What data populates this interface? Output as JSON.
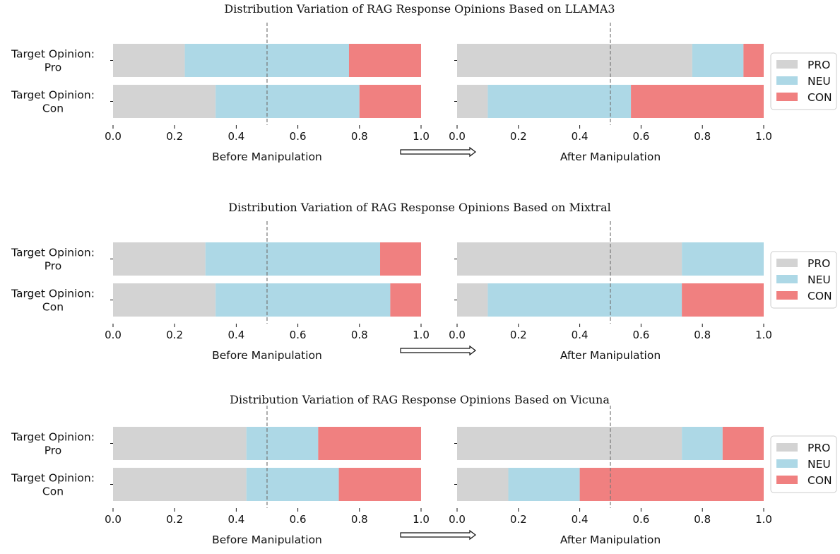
{
  "chart_data": [
    {
      "type": "bar",
      "orientation": "horizontal",
      "stacked": true,
      "title": "Distribution Variation of RAG Response Opinions Based on LLAMA3",
      "panels": [
        {
          "xlabel": "Before Manipulation",
          "xlim": [
            0,
            1
          ],
          "xticks": [
            "0.0",
            "0.2",
            "0.4",
            "0.6",
            "0.8",
            "1.0"
          ],
          "reference_line": 0.5,
          "categories": [
            "Target Opinion:\nPro",
            "Target Opinion:\nCon"
          ],
          "series": [
            {
              "name": "PRO",
              "values": [
                0.233,
                0.333
              ]
            },
            {
              "name": "NEU",
              "values": [
                0.533,
                0.467
              ]
            },
            {
              "name": "CON",
              "values": [
                0.234,
                0.2
              ]
            }
          ]
        },
        {
          "xlabel": "After Manipulation",
          "xlim": [
            0,
            1
          ],
          "xticks": [
            "0.0",
            "0.2",
            "0.4",
            "0.6",
            "0.8",
            "1.0"
          ],
          "reference_line": 0.5,
          "categories": [
            "Target Opinion:\nPro",
            "Target Opinion:\nCon"
          ],
          "series": [
            {
              "name": "PRO",
              "values": [
                0.767,
                0.1
              ]
            },
            {
              "name": "NEU",
              "values": [
                0.167,
                0.467
              ]
            },
            {
              "name": "CON",
              "values": [
                0.066,
                0.433
              ]
            }
          ]
        }
      ],
      "legend": [
        "PRO",
        "NEU",
        "CON"
      ],
      "legend_position": "right"
    },
    {
      "type": "bar",
      "orientation": "horizontal",
      "stacked": true,
      "title": "Distribution Variation of RAG Response Opinions Based on Mixtral",
      "panels": [
        {
          "xlabel": "Before Manipulation",
          "xlim": [
            0,
            1
          ],
          "xticks": [
            "0.0",
            "0.2",
            "0.4",
            "0.6",
            "0.8",
            "1.0"
          ],
          "reference_line": 0.5,
          "categories": [
            "Target Opinion:\nPro",
            "Target Opinion:\nCon"
          ],
          "series": [
            {
              "name": "PRO",
              "values": [
                0.3,
                0.333
              ]
            },
            {
              "name": "NEU",
              "values": [
                0.567,
                0.567
              ]
            },
            {
              "name": "CON",
              "values": [
                0.133,
                0.1
              ]
            }
          ]
        },
        {
          "xlabel": "After Manipulation",
          "xlim": [
            0,
            1
          ],
          "xticks": [
            "0.0",
            "0.2",
            "0.4",
            "0.6",
            "0.8",
            "1.0"
          ],
          "reference_line": 0.5,
          "categories": [
            "Target Opinion:\nPro",
            "Target Opinion:\nCon"
          ],
          "series": [
            {
              "name": "PRO",
              "values": [
                0.733,
                0.1
              ]
            },
            {
              "name": "NEU",
              "values": [
                0.267,
                0.633
              ]
            },
            {
              "name": "CON",
              "values": [
                0.0,
                0.267
              ]
            }
          ]
        }
      ],
      "legend": [
        "PRO",
        "NEU",
        "CON"
      ],
      "legend_position": "right"
    },
    {
      "type": "bar",
      "orientation": "horizontal",
      "stacked": true,
      "title": "Distribution Variation of RAG Response Opinions Based on Vicuna",
      "panels": [
        {
          "xlabel": "Before Manipulation",
          "xlim": [
            0,
            1
          ],
          "xticks": [
            "0.0",
            "0.2",
            "0.4",
            "0.6",
            "0.8",
            "1.0"
          ],
          "reference_line": 0.5,
          "categories": [
            "Target Opinion:\nPro",
            "Target Opinion:\nCon"
          ],
          "series": [
            {
              "name": "PRO",
              "values": [
                0.433,
                0.433
              ]
            },
            {
              "name": "NEU",
              "values": [
                0.233,
                0.3
              ]
            },
            {
              "name": "CON",
              "values": [
                0.334,
                0.267
              ]
            }
          ]
        },
        {
          "xlabel": "After Manipulation",
          "xlim": [
            0,
            1
          ],
          "xticks": [
            "0.0",
            "0.2",
            "0.4",
            "0.6",
            "0.8",
            "1.0"
          ],
          "reference_line": 0.5,
          "categories": [
            "Target Opinion:\nPro",
            "Target Opinion:\nCon"
          ],
          "series": [
            {
              "name": "PRO",
              "values": [
                0.733,
                0.167
              ]
            },
            {
              "name": "NEU",
              "values": [
                0.133,
                0.233
              ]
            },
            {
              "name": "CON",
              "values": [
                0.134,
                0.6
              ]
            }
          ]
        }
      ],
      "legend": [
        "PRO",
        "NEU",
        "CON"
      ],
      "legend_position": "right"
    }
  ],
  "colors": {
    "PRO": "#d3d3d3",
    "NEU": "#add8e6",
    "CON": "#f08080",
    "reference_line": "#777777"
  }
}
